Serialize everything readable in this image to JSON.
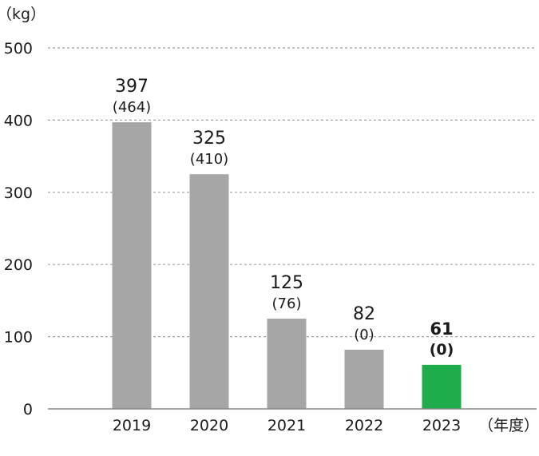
{
  "chart_data": {
    "type": "bar",
    "unit_label": "（kg）",
    "x_unit_label": "（年度）",
    "ylim": [
      0,
      500
    ],
    "y_ticks": [
      0,
      100,
      200,
      300,
      400,
      500
    ],
    "grid": true,
    "categories": [
      "2019",
      "2020",
      "2021",
      "2022",
      "2023"
    ],
    "series": [
      {
        "values": [
          397,
          325,
          125,
          82,
          61
        ],
        "secondary_labels": [
          "(464)",
          "(410)",
          "(76)",
          "(0)",
          "(0)"
        ]
      }
    ],
    "highlight_index": 4
  },
  "colors": {
    "bar": "#a6a6a6",
    "highlight": "#1ead4a",
    "grid": "#a0a0a0",
    "axis": "#8a8a8a",
    "text": "#1a1a1a"
  }
}
